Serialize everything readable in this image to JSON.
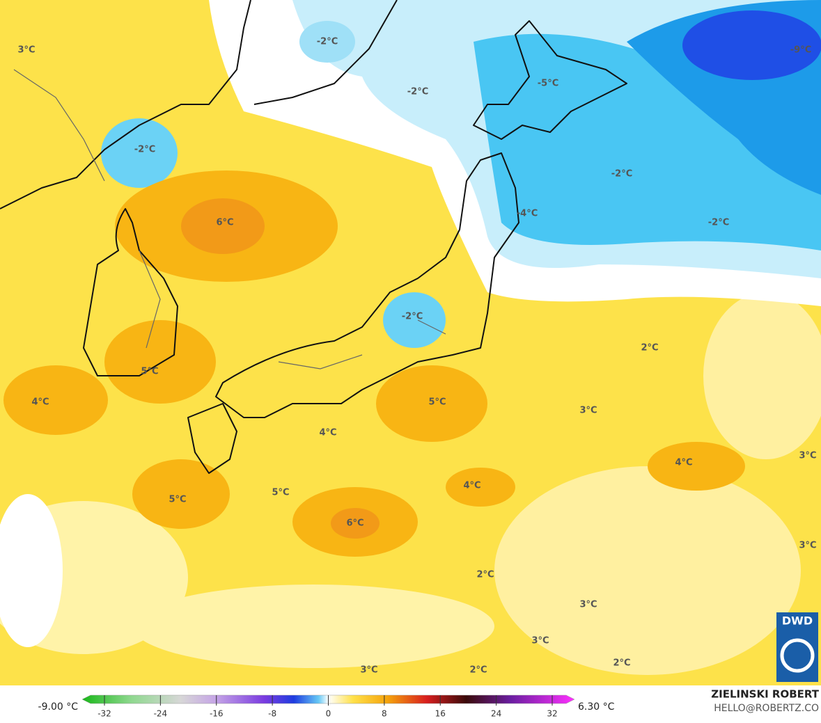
{
  "map_labels": [
    "3°C",
    "-2°C",
    "-2°C",
    "-5°C",
    "-9°C",
    "-2°C",
    "-2°C",
    "6°C",
    "-4°C",
    "-2°C",
    "-2°C",
    "2°C",
    "5°C",
    "4°C",
    "5°C",
    "3°C",
    "4°C",
    "4°C",
    "3°C",
    "4°C",
    "5°C",
    "5°C",
    "6°C",
    "3°C",
    "2°C",
    "3°C",
    "3°C",
    "2°C",
    "3°C",
    "2°C"
  ],
  "colorbar": {
    "min_label": "-9.00 °C",
    "max_label": "6.30 °C",
    "ticks": [
      -32,
      -24,
      -16,
      -8,
      0,
      8,
      16,
      24,
      32
    ]
  },
  "credit": {
    "author": "ZIELINSKI ROBERT",
    "contact": "HELLO@ROBERTZ.CO",
    "logo": "DWD"
  }
}
